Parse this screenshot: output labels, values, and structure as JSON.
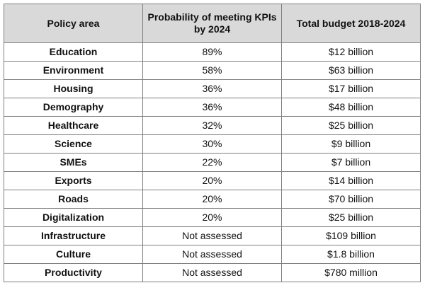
{
  "table": {
    "headers": [
      "Policy area",
      "Probability of meeting KPIs by 2024",
      "Total budget 2018-2024"
    ],
    "rows": [
      {
        "area": "Education",
        "probability": "89%",
        "budget": "$12 billion"
      },
      {
        "area": "Environment",
        "probability": "58%",
        "budget": "$63 billion"
      },
      {
        "area": "Housing",
        "probability": "36%",
        "budget": "$17 billion"
      },
      {
        "area": "Demography",
        "probability": "36%",
        "budget": "$48 billion"
      },
      {
        "area": "Healthcare",
        "probability": "32%",
        "budget": "$25 billion"
      },
      {
        "area": "Science",
        "probability": "30%",
        "budget": "$9 billion"
      },
      {
        "area": "SMEs",
        "probability": "22%",
        "budget": "$7 billion"
      },
      {
        "area": "Exports",
        "probability": "20%",
        "budget": "$14 billion"
      },
      {
        "area": "Roads",
        "probability": "20%",
        "budget": "$70 billion"
      },
      {
        "area": "Digitalization",
        "probability": "20%",
        "budget": "$25 billion"
      },
      {
        "area": "Infrastructure",
        "probability": "Not assessed",
        "budget": "$109 billion"
      },
      {
        "area": "Culture",
        "probability": "Not assessed",
        "budget": "$1.8 billion"
      },
      {
        "area": "Productivity",
        "probability": "Not assessed",
        "budget": "$780 million"
      }
    ]
  },
  "colors": {
    "header_background": "#d9d9d9",
    "border": "#7f7f7f",
    "text": "#111111"
  }
}
